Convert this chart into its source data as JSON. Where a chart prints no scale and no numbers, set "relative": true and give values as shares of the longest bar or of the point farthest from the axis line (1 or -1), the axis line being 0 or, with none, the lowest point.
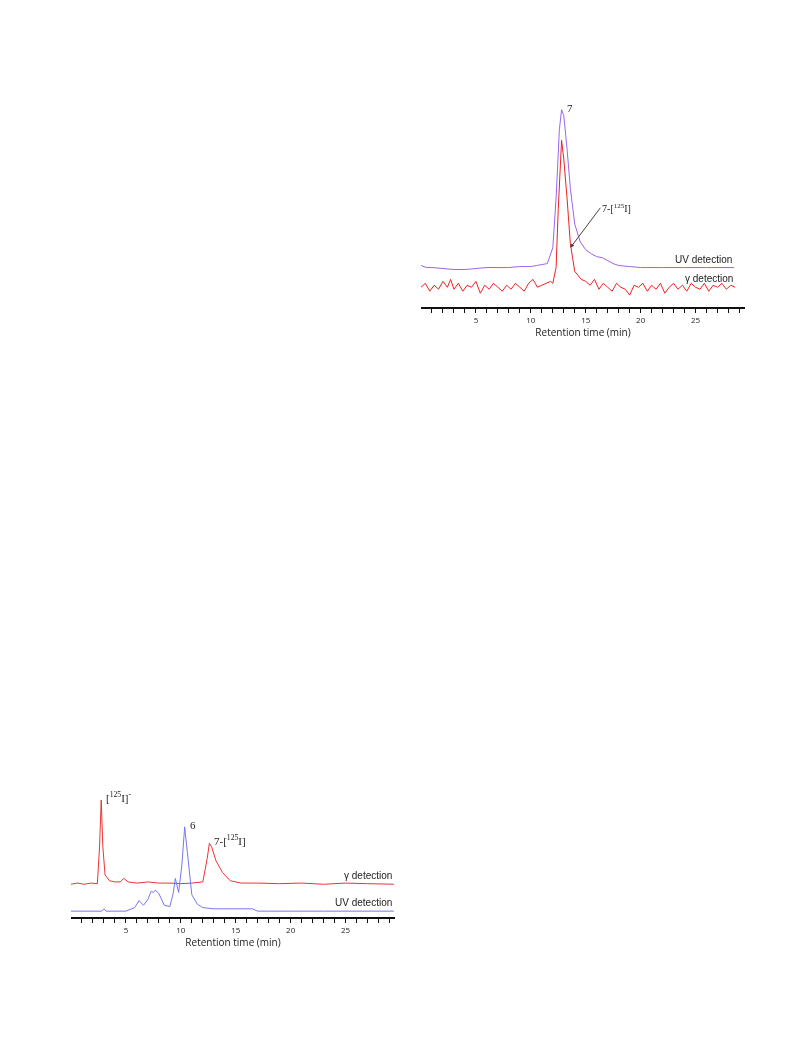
{
  "chart_data": [
    {
      "type": "line",
      "relative": true,
      "xlabel": "Retention time (min)",
      "xlim": [
        0,
        29.5
      ],
      "xticks": [
        {
          "value": 1,
          "label": null
        },
        {
          "value": 2,
          "label": null
        },
        {
          "value": 3,
          "label": null
        },
        {
          "value": 4,
          "label": null
        },
        5,
        {
          "value": 6,
          "label": null
        },
        {
          "value": 7,
          "label": null
        },
        {
          "value": 8,
          "label": null
        },
        {
          "value": 9,
          "label": null
        },
        10,
        {
          "value": 11,
          "label": null
        },
        {
          "value": 12,
          "label": null
        },
        {
          "value": 13,
          "label": null
        },
        {
          "value": 14,
          "label": null
        },
        15,
        {
          "value": 16,
          "label": null
        },
        {
          "value": 17,
          "label": null
        },
        {
          "value": 18,
          "label": null
        },
        {
          "value": 19,
          "label": null
        },
        20,
        {
          "value": 21,
          "label": null
        },
        {
          "value": 22,
          "label": null
        },
        {
          "value": 23,
          "label": null
        },
        {
          "value": 24,
          "label": null
        },
        25,
        {
          "value": 26,
          "label": null
        },
        {
          "value": 27,
          "label": null
        },
        {
          "value": 28,
          "label": null
        },
        {
          "value": 29,
          "label": null
        }
      ],
      "tick_labels": "x",
      "grid": false,
      "legend": false,
      "marker": "none",
      "line_style": "solid",
      "series": [
        {
          "name": "UV detection",
          "color": "#9966ee",
          "x": [
            0,
            0.5,
            1,
            2,
            3,
            4,
            5,
            6,
            7,
            8,
            9,
            10,
            10.5,
            11,
            11.5,
            12,
            12.3,
            12.6,
            12.8,
            13.0,
            13.3,
            13.6,
            14,
            14.5,
            15,
            15.5,
            16,
            16.5,
            17,
            17.5,
            18,
            19,
            20,
            22,
            24,
            26,
            28.5
          ],
          "values": [
            0.21,
            0.2,
            0.2,
            0.195,
            0.19,
            0.19,
            0.195,
            0.2,
            0.2,
            0.2,
            0.205,
            0.205,
            0.21,
            0.215,
            0.22,
            0.3,
            0.55,
            0.9,
            1.0,
            0.97,
            0.8,
            0.6,
            0.42,
            0.33,
            0.29,
            0.27,
            0.255,
            0.25,
            0.235,
            0.22,
            0.21,
            0.205,
            0.2,
            0.2,
            0.2,
            0.2,
            0.2
          ]
        },
        {
          "name": "γ detection",
          "color": "#ee2222",
          "x": [
            0,
            0.4,
            0.8,
            1.2,
            1.6,
            2,
            2.4,
            2.7,
            3,
            3.4,
            3.8,
            4.2,
            4.6,
            5,
            5.4,
            5.8,
            6.2,
            6.6,
            7,
            7.4,
            7.8,
            8.2,
            8.6,
            9,
            9.4,
            9.8,
            10.2,
            10.6,
            11,
            11.4,
            11.8,
            12,
            12.3,
            12.5,
            12.8,
            13.0,
            13.3,
            13.6,
            13.8,
            14,
            14.3,
            14.6,
            15,
            15.4,
            15.8,
            16.2,
            16.6,
            17,
            17.4,
            17.8,
            18.2,
            18.6,
            19,
            19.4,
            19.8,
            20.2,
            20.6,
            21,
            21.4,
            21.8,
            22.2,
            22.6,
            23,
            23.4,
            23.8,
            24.2,
            24.6,
            25,
            25.4,
            25.8,
            26.2,
            26.6,
            27,
            27.4,
            27.8,
            28.2,
            28.6
          ],
          "values": [
            0.1,
            0.12,
            0.08,
            0.11,
            0.09,
            0.13,
            0.1,
            0.14,
            0.09,
            0.12,
            0.08,
            0.11,
            0.1,
            0.13,
            0.07,
            0.11,
            0.09,
            0.12,
            0.1,
            0.08,
            0.11,
            0.09,
            0.12,
            0.1,
            0.08,
            0.12,
            0.14,
            0.1,
            0.11,
            0.12,
            0.13,
            0.12,
            0.2,
            0.5,
            0.845,
            0.75,
            0.55,
            0.32,
            0.25,
            0.18,
            0.16,
            0.14,
            0.13,
            0.11,
            0.14,
            0.09,
            0.12,
            0.1,
            0.08,
            0.12,
            0.1,
            0.09,
            0.06,
            0.11,
            0.1,
            0.12,
            0.08,
            0.11,
            0.09,
            0.12,
            0.07,
            0.1,
            0.12,
            0.09,
            0.11,
            0.08,
            0.12,
            0.1,
            0.09,
            0.12,
            0.08,
            0.11,
            0.1,
            0.12,
            0.09,
            0.11,
            0.1
          ]
        }
      ],
      "annotations": [
        {
          "text": "7",
          "x": 12.8,
          "y": 1.0
        },
        {
          "text": "7-[$^{125}$I]",
          "x": 13.6,
          "y": 0.3
        }
      ]
    },
    {
      "type": "line",
      "relative": true,
      "xlabel": "Retention time (min)",
      "xlim": [
        0,
        29.5
      ],
      "xticks": [
        {
          "value": 1,
          "label": null
        },
        {
          "value": 2,
          "label": null
        },
        {
          "value": 3,
          "label": null
        },
        {
          "value": 4,
          "label": null
        },
        5,
        {
          "value": 6,
          "label": null
        },
        {
          "value": 7,
          "label": null
        },
        {
          "value": 8,
          "label": null
        },
        {
          "value": 9,
          "label": null
        },
        10,
        {
          "value": 11,
          "label": null
        },
        {
          "value": 12,
          "label": null
        },
        {
          "value": 13,
          "label": null
        },
        {
          "value": 14,
          "label": null
        },
        15,
        {
          "value": 16,
          "label": null
        },
        {
          "value": 17,
          "label": null
        },
        {
          "value": 18,
          "label": null
        },
        {
          "value": 19,
          "label": null
        },
        20,
        {
          "value": 21,
          "label": null
        },
        {
          "value": 22,
          "label": null
        },
        {
          "value": 23,
          "label": null
        },
        {
          "value": 24,
          "label": null
        },
        25,
        {
          "value": 26,
          "label": null
        },
        {
          "value": 27,
          "label": null
        },
        {
          "value": 28,
          "label": null
        },
        {
          "value": 29,
          "label": null
        }
      ],
      "tick_labels": "x",
      "grid": false,
      "legend": false,
      "marker": "none",
      "line_style": "solid",
      "series": [
        {
          "name": "γ detection",
          "color": "#ee3333",
          "x": [
            0,
            0.6,
            1.2,
            1.8,
            2.4,
            2.6,
            2.75,
            2.9,
            3.1,
            3.5,
            4,
            4.5,
            4.8,
            5.2,
            6,
            7,
            8,
            9,
            10,
            11,
            12,
            12.2,
            12.4,
            12.6,
            12.8,
            13.2,
            13.8,
            14.5,
            15.5,
            17,
            19,
            21,
            23,
            25,
            27,
            29.4
          ],
          "values": [
            0.28,
            0.29,
            0.28,
            0.29,
            0.285,
            0.6,
            1.0,
            0.6,
            0.36,
            0.31,
            0.3,
            0.3,
            0.33,
            0.3,
            0.29,
            0.3,
            0.29,
            0.29,
            0.285,
            0.29,
            0.3,
            0.4,
            0.5,
            0.63,
            0.6,
            0.48,
            0.38,
            0.31,
            0.29,
            0.29,
            0.285,
            0.29,
            0.28,
            0.29,
            0.285,
            0.28
          ]
        },
        {
          "name": "UV detection",
          "color": "#7777ee",
          "x": [
            0,
            1,
            2,
            2.8,
            3,
            3.2,
            4,
            5,
            5.8,
            6.2,
            6.6,
            7,
            7.3,
            7.5,
            7.7,
            8,
            8.5,
            9,
            9.3,
            9.5,
            9.8,
            10.1,
            10.35,
            10.6,
            11,
            11.5,
            12,
            13,
            14,
            15,
            16,
            16.5,
            17,
            18,
            20,
            23,
            26,
            29.4
          ],
          "values": [
            0.05,
            0.05,
            0.05,
            0.05,
            0.07,
            0.05,
            0.05,
            0.05,
            0.08,
            0.14,
            0.1,
            0.15,
            0.22,
            0.21,
            0.23,
            0.2,
            0.1,
            0.09,
            0.2,
            0.33,
            0.21,
            0.45,
            0.77,
            0.55,
            0.19,
            0.11,
            0.08,
            0.07,
            0.07,
            0.07,
            0.07,
            0.07,
            0.05,
            0.05,
            0.05,
            0.05,
            0.05,
            0.05
          ]
        }
      ],
      "annotations": [
        {
          "text": "[$^{125}$I]$^{-}$",
          "x": 2.75,
          "y": 1.0
        },
        {
          "text": "6",
          "x": 10.35,
          "y": 0.77
        },
        {
          "text": "7-[$^{125}$I]",
          "x": 12.6,
          "y": 0.63
        }
      ]
    }
  ]
}
